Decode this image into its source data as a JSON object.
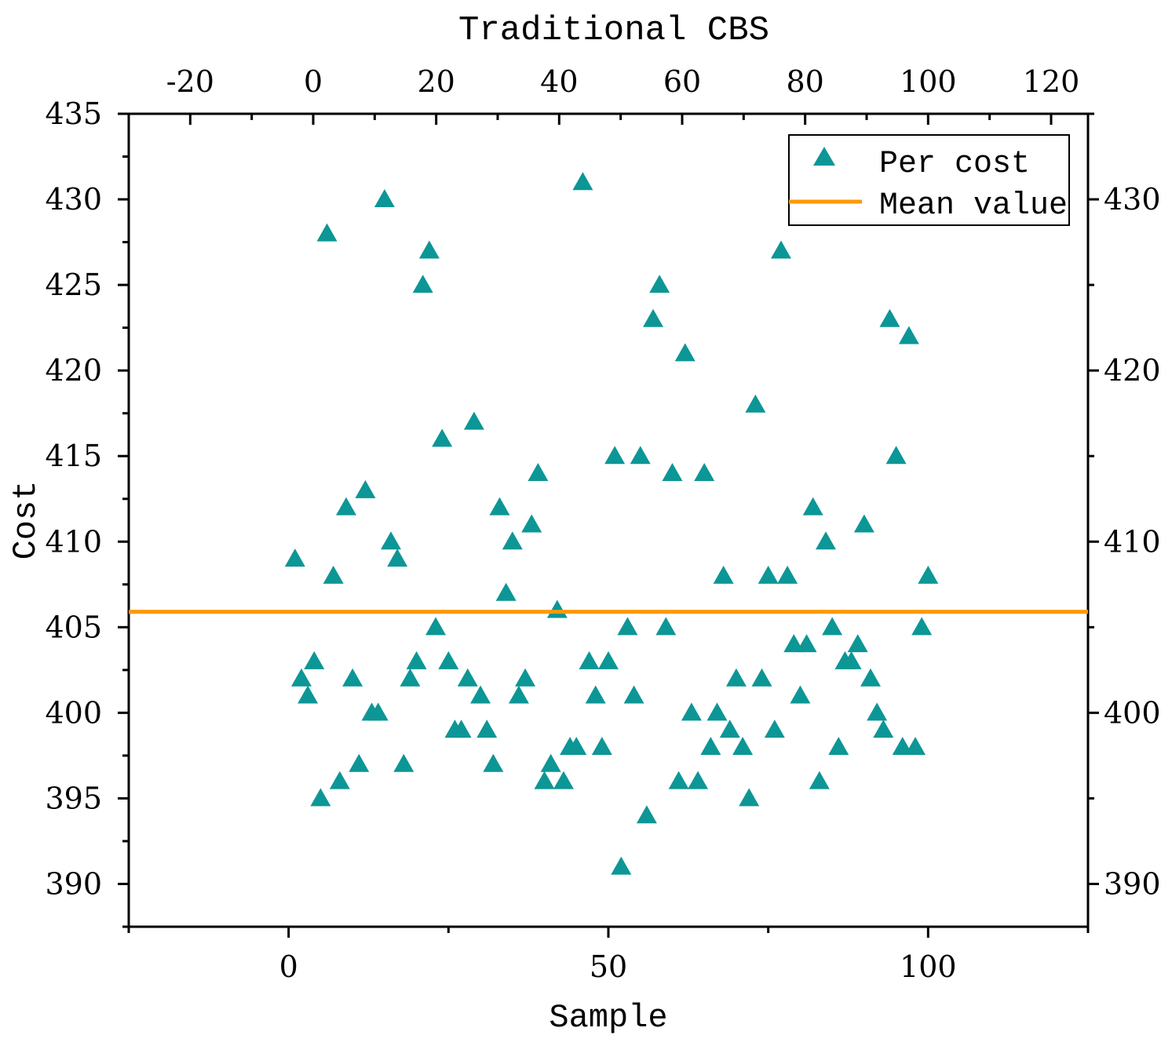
{
  "chart_data": {
    "type": "scatter",
    "title": "Traditional CBS",
    "xlabel": "Sample",
    "ylabel": "Cost",
    "xlim": [
      -25,
      125
    ],
    "ylim": [
      387.5,
      435
    ],
    "x_major_ticks": [
      0,
      50,
      100
    ],
    "x_minor_ticks": [
      -25,
      25,
      75,
      125
    ],
    "top_ticks": [
      -20,
      0,
      20,
      40,
      60,
      80,
      100,
      120
    ],
    "y_ticks_left": [
      390,
      395,
      400,
      405,
      410,
      415,
      420,
      425,
      430,
      435
    ],
    "y_ticks_right": [
      390,
      400,
      410,
      420,
      430
    ],
    "grid": false,
    "legend_position": "top-right",
    "colors": {
      "points": "#0d9696",
      "mean": "#ff9900",
      "axes": "#000000"
    },
    "series": [
      {
        "name": "Per cost",
        "marker": "triangle",
        "x": [
          1,
          2,
          3,
          4,
          5,
          6,
          7,
          8,
          9,
          10,
          11,
          12,
          13,
          14,
          15,
          16,
          17,
          18,
          19,
          20,
          21,
          22,
          23,
          24,
          25,
          26,
          27,
          28,
          29,
          30,
          31,
          32,
          33,
          34,
          35,
          36,
          37,
          38,
          39,
          40,
          41,
          42,
          43,
          44,
          45,
          46,
          47,
          48,
          49,
          50,
          51,
          52,
          53,
          54,
          55,
          56,
          57,
          58,
          59,
          60,
          61,
          62,
          63,
          64,
          65,
          66,
          67,
          68,
          69,
          70,
          71,
          72,
          73,
          74,
          75,
          76,
          77,
          78,
          79,
          80,
          81,
          82,
          83,
          84,
          85,
          86,
          87,
          88,
          89,
          90,
          91,
          92,
          93,
          94,
          95,
          96,
          97,
          98,
          99,
          100
        ],
        "values": [
          409,
          402,
          401,
          403,
          395,
          428,
          408,
          396,
          412,
          402,
          397,
          413,
          400,
          400,
          430,
          410,
          409,
          397,
          402,
          403,
          425,
          427,
          405,
          416,
          403,
          399,
          399,
          402,
          417,
          401,
          399,
          397,
          412,
          407,
          410,
          401,
          402,
          411,
          414,
          396,
          397,
          406,
          396,
          398,
          398,
          431,
          403,
          401,
          398,
          403,
          415,
          391,
          405,
          401,
          415,
          394,
          423,
          425,
          405,
          414,
          396,
          421,
          400,
          396,
          414,
          398,
          400,
          408,
          399,
          402,
          398,
          395,
          418,
          402,
          408,
          399,
          427,
          408,
          404,
          401,
          404,
          412,
          396,
          410,
          405,
          398,
          403,
          403,
          404,
          411,
          402,
          400,
          399,
          423,
          415,
          398,
          422,
          398,
          405,
          408
        ]
      },
      {
        "name": "Mean value",
        "type": "hline",
        "value": 405.9
      }
    ]
  }
}
